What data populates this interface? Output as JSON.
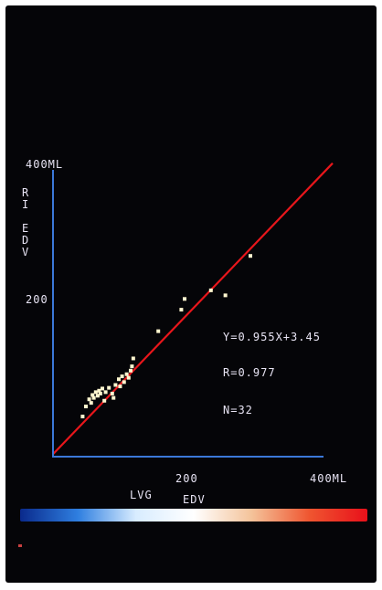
{
  "chart_data": {
    "type": "scatter",
    "xlabel": "LVG EDV",
    "ylabel": "RI EDV",
    "x_ticks": [
      "200",
      "400ML"
    ],
    "y_ticks": [
      "400ML",
      "200"
    ],
    "xlim": [
      0,
      400
    ],
    "ylim": [
      0,
      400
    ],
    "regression": {
      "slope": 0.955,
      "intercept": 3.45
    },
    "annotations": [
      "Y=0.955X+3.45",
      "R=0.977",
      "N=32"
    ],
    "points": [
      {
        "x": 45,
        "y": 56
      },
      {
        "x": 50,
        "y": 70
      },
      {
        "x": 55,
        "y": 80
      },
      {
        "x": 58,
        "y": 75
      },
      {
        "x": 60,
        "y": 86
      },
      {
        "x": 62,
        "y": 82
      },
      {
        "x": 65,
        "y": 90
      },
      {
        "x": 68,
        "y": 85
      },
      {
        "x": 70,
        "y": 92
      },
      {
        "x": 72,
        "y": 88
      },
      {
        "x": 75,
        "y": 95
      },
      {
        "x": 78,
        "y": 78
      },
      {
        "x": 80,
        "y": 90
      },
      {
        "x": 85,
        "y": 96
      },
      {
        "x": 90,
        "y": 88
      },
      {
        "x": 92,
        "y": 82
      },
      {
        "x": 95,
        "y": 100
      },
      {
        "x": 100,
        "y": 108
      },
      {
        "x": 102,
        "y": 98
      },
      {
        "x": 105,
        "y": 112
      },
      {
        "x": 108,
        "y": 104
      },
      {
        "x": 112,
        "y": 115
      },
      {
        "x": 115,
        "y": 110
      },
      {
        "x": 118,
        "y": 120
      },
      {
        "x": 120,
        "y": 126
      },
      {
        "x": 122,
        "y": 137
      },
      {
        "x": 160,
        "y": 175
      },
      {
        "x": 195,
        "y": 205
      },
      {
        "x": 200,
        "y": 220
      },
      {
        "x": 240,
        "y": 232
      },
      {
        "x": 262,
        "y": 225
      },
      {
        "x": 300,
        "y": 280
      }
    ],
    "colors": {
      "axis": "#3b78d8",
      "regression_line": "#e8161b",
      "points": "#fff6cf",
      "text": "#e8e4f4",
      "background": "#050508"
    },
    "colorbar": [
      "#0a2a8c",
      "#2f7fe0",
      "#d8ecff",
      "#ffffff",
      "#f4c39a",
      "#ef5530",
      "#e8101a"
    ]
  }
}
